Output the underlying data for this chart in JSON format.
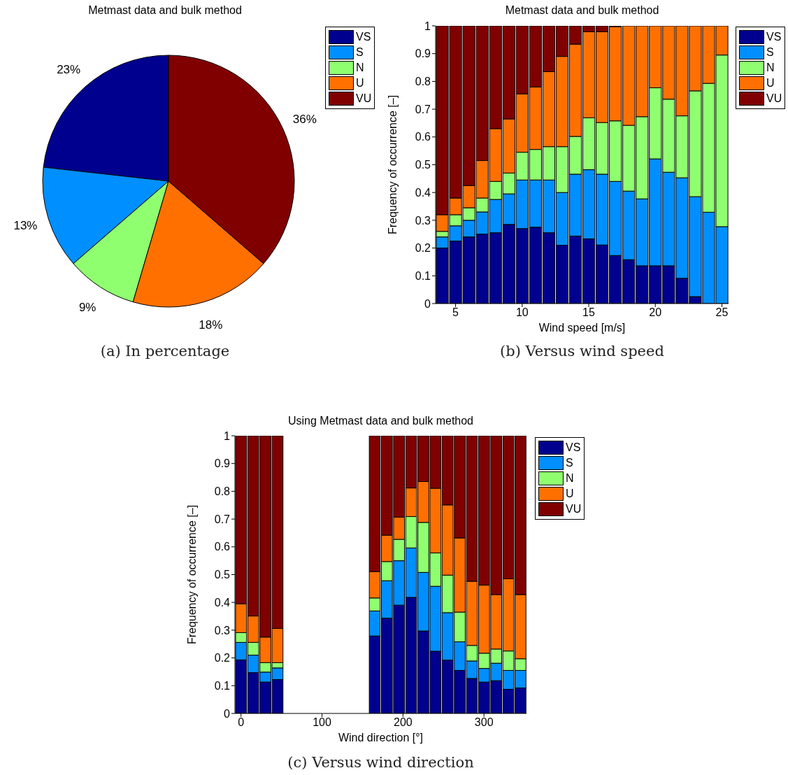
{
  "chart_data": [
    {
      "type": "pie",
      "title": "Metmast data and bulk method",
      "categories": [
        "VS",
        "S",
        "N",
        "U",
        "VU"
      ],
      "values": [
        23,
        13,
        9,
        18,
        36
      ],
      "colors": [
        "#00008f",
        "#008fff",
        "#8fff70",
        "#ff7000",
        "#800000"
      ],
      "value_labels": [
        "23%",
        "13%",
        "9%",
        "18%",
        "36%"
      ],
      "legend": "top right",
      "annotations": [
        "(a) In percentage"
      ]
    },
    {
      "type": "bar",
      "stacked": true,
      "title": "Metmast data and bulk method",
      "xlabel": "Wind speed [m/s]",
      "ylabel": "Frequency of occurrence [–]",
      "x": [
        4,
        5,
        6,
        7,
        8,
        9,
        10,
        11,
        12,
        13,
        14,
        15,
        16,
        17,
        18,
        19,
        20,
        21,
        22,
        23,
        24,
        25
      ],
      "xlim": [
        3.5,
        25.5
      ],
      "xticks": [
        5,
        10,
        15,
        20,
        25
      ],
      "ylim": [
        0,
        1
      ],
      "yticks": [
        0,
        0.1,
        0.2,
        0.3,
        0.4,
        0.5,
        0.6,
        0.7,
        0.8,
        0.9,
        1
      ],
      "legend": "top right",
      "annotations": [
        "(b) Versus wind speed"
      ],
      "series": [
        {
          "name": "VS",
          "color": "#00008f",
          "values": [
            0.2,
            0.225,
            0.24,
            0.25,
            0.255,
            0.285,
            0.27,
            0.275,
            0.255,
            0.21,
            0.243,
            0.233,
            0.211,
            0.173,
            0.158,
            0.136,
            0.136,
            0.136,
            0.091,
            0.025,
            0,
            0
          ]
        },
        {
          "name": "S",
          "color": "#008fff",
          "values": [
            0.04,
            0.055,
            0.06,
            0.08,
            0.12,
            0.11,
            0.175,
            0.17,
            0.19,
            0.19,
            0.223,
            0.249,
            0.255,
            0.267,
            0.247,
            0.241,
            0.385,
            0.337,
            0.362,
            0.36,
            0.329,
            0.277
          ]
        },
        {
          "name": "N",
          "color": "#8fff70",
          "values": [
            0.02,
            0.04,
            0.045,
            0.05,
            0.065,
            0.075,
            0.1,
            0.11,
            0.12,
            0.165,
            0.136,
            0.187,
            0.186,
            0.218,
            0.237,
            0.296,
            0.256,
            0.263,
            0.223,
            0.381,
            0.464,
            0.618
          ]
        },
        {
          "name": "U",
          "color": "#ff7000",
          "values": [
            0.06,
            0.06,
            0.08,
            0.135,
            0.19,
            0.195,
            0.21,
            0.225,
            0.27,
            0.325,
            0.332,
            0.31,
            0.327,
            0.339,
            0.358,
            0.327,
            0.223,
            0.264,
            0.324,
            0.234,
            0.207,
            0.105
          ]
        },
        {
          "name": "VU",
          "color": "#800000",
          "values": [
            0.68,
            0.62,
            0.575,
            0.485,
            0.37,
            0.335,
            0.245,
            0.22,
            0.165,
            0.11,
            0.066,
            0.021,
            0.021,
            0.003,
            0,
            0,
            0,
            0,
            0,
            0,
            0,
            0
          ]
        }
      ]
    },
    {
      "type": "bar",
      "stacked": true,
      "title": "Using Metmast data and bulk method",
      "xlabel": "Wind direction [°]",
      "ylabel": "Frequency of occurrence [–]",
      "x": [
        0,
        15,
        30,
        45,
        60,
        75,
        90,
        105,
        120,
        135,
        150,
        165,
        180,
        195,
        210,
        225,
        240,
        255,
        270,
        285,
        300,
        315,
        330,
        345
      ],
      "xlim": [
        -7.5,
        352.5
      ],
      "xticks": [
        0,
        100,
        200,
        300
      ],
      "ylim": [
        0,
        1
      ],
      "yticks": [
        0,
        0.1,
        0.2,
        0.3,
        0.4,
        0.5,
        0.6,
        0.7,
        0.8,
        0.9,
        1
      ],
      "legend": "top right",
      "annotations": [
        "(c) Versus wind direction"
      ],
      "series": [
        {
          "name": "VS",
          "color": "#00008f",
          "values": [
            0.193,
            0.147,
            0.113,
            0.122,
            null,
            null,
            null,
            null,
            null,
            null,
            null,
            0.279,
            0.343,
            0.39,
            0.418,
            0.297,
            0.224,
            0.192,
            0.155,
            0.126,
            0.113,
            0.118,
            0.087,
            0.092
          ]
        },
        {
          "name": "S",
          "color": "#008fff",
          "values": [
            0.063,
            0.063,
            0.036,
            0.042,
            null,
            null,
            null,
            null,
            null,
            null,
            null,
            0.09,
            0.135,
            0.16,
            0.178,
            0.211,
            0.234,
            0.171,
            0.103,
            0.063,
            0.049,
            0.063,
            0.068,
            0.063
          ]
        },
        {
          "name": "N",
          "color": "#8fff70",
          "values": [
            0.035,
            0.046,
            0.034,
            0.019,
            null,
            null,
            null,
            null,
            null,
            null,
            null,
            0.047,
            0.069,
            0.077,
            0.113,
            0.18,
            0.12,
            0.135,
            0.107,
            0.056,
            0.055,
            0.051,
            0.07,
            0.042
          ]
        },
        {
          "name": "U",
          "color": "#ff7000",
          "values": [
            0.104,
            0.095,
            0.092,
            0.123,
            null,
            null,
            null,
            null,
            null,
            null,
            null,
            0.095,
            0.095,
            0.08,
            0.103,
            0.147,
            0.233,
            0.253,
            0.267,
            0.231,
            0.245,
            0.196,
            0.26,
            0.231
          ]
        },
        {
          "name": "VU",
          "color": "#800000",
          "values": [
            0.605,
            0.649,
            0.725,
            0.694,
            null,
            null,
            null,
            null,
            null,
            null,
            null,
            0.489,
            0.358,
            0.293,
            0.188,
            0.165,
            0.189,
            0.249,
            0.368,
            0.524,
            0.538,
            0.572,
            0.515,
            0.572
          ]
        }
      ]
    }
  ]
}
